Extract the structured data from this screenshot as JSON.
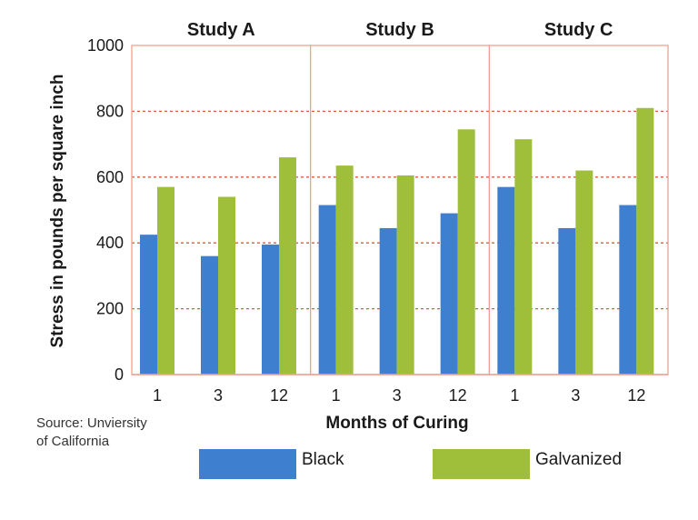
{
  "chart_data": {
    "type": "bar",
    "panels": [
      "Study A",
      "Study B",
      "Study C"
    ],
    "categories": [
      "1",
      "3",
      "12"
    ],
    "series": [
      {
        "name": "Black",
        "values": [
          [
            425,
            360,
            395
          ],
          [
            515,
            445,
            490
          ],
          [
            570,
            445,
            515
          ]
        ]
      },
      {
        "name": "Galvanized",
        "values": [
          [
            570,
            540,
            660
          ],
          [
            635,
            605,
            745
          ],
          [
            715,
            620,
            810
          ]
        ]
      }
    ],
    "xlabel": "Months of Curing",
    "ylabel": "Stress in pounds per square inch",
    "ylim": [
      0,
      1000
    ],
    "yticks": [
      "0",
      "200",
      "400",
      "600",
      "800",
      "1000"
    ],
    "source": [
      "Source: Unviersity",
      "of California"
    ],
    "grid": true,
    "legend_position": "bottom",
    "colors": {
      "Black": "#3f7fcf",
      "Galvanized": "#9fbf3b",
      "grid": "#e05a3a",
      "frame": "#f0a090"
    }
  }
}
